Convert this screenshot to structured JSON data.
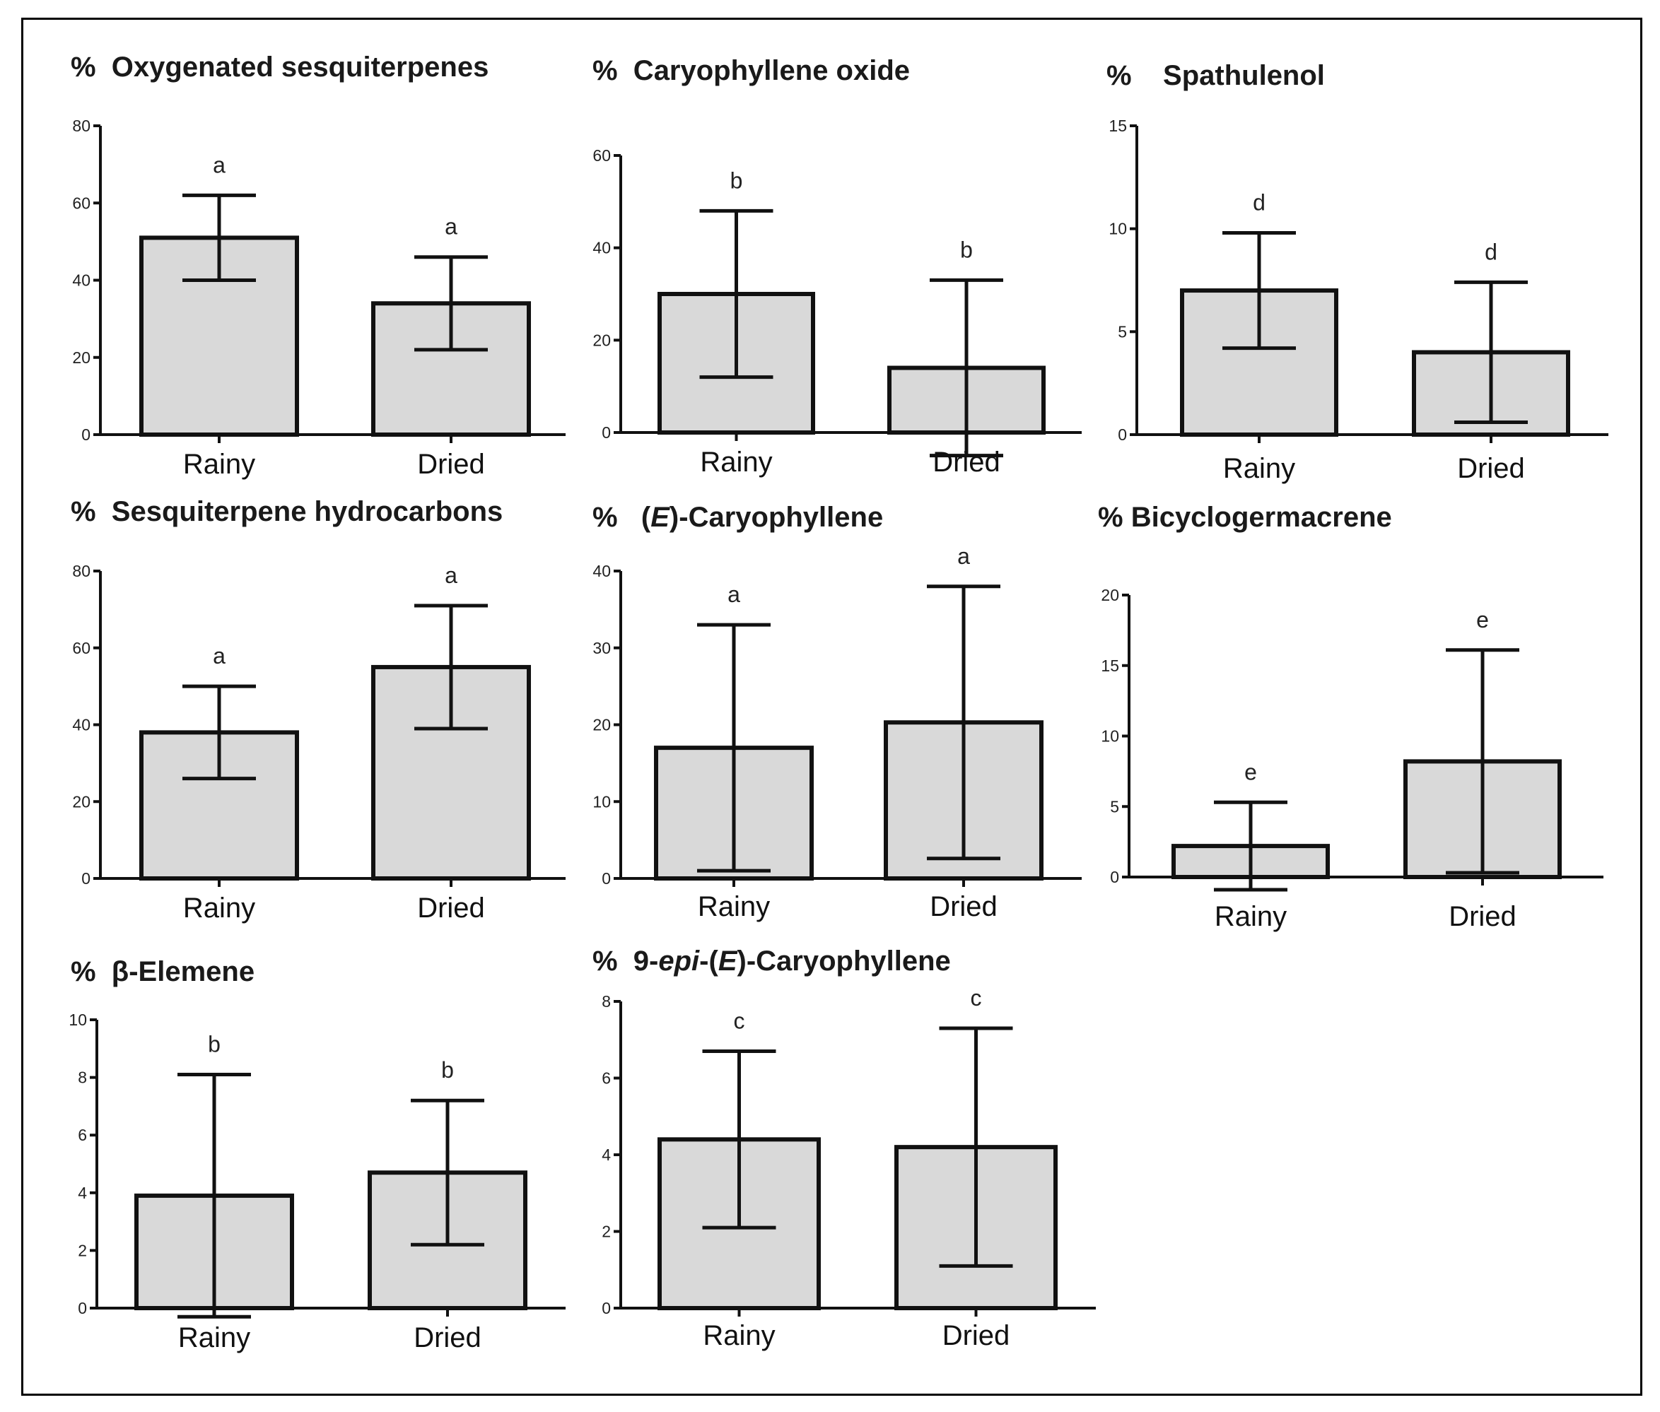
{
  "chart_data": [
    {
      "type": "bar",
      "title_parts": [
        {
          "text": "% "
        },
        {
          "text": " Oxygenated sesquiterpenes"
        }
      ],
      "categories": [
        "Rainy",
        "Dried"
      ],
      "values": [
        51,
        34
      ],
      "errors": [
        11,
        12
      ],
      "significance": [
        "a",
        "a"
      ],
      "ylim": [
        0,
        80
      ],
      "yticks": [
        0,
        20,
        40,
        60,
        80
      ]
    },
    {
      "type": "bar",
      "title_parts": [
        {
          "text": "% "
        },
        {
          "text": " Caryophyllene oxide"
        }
      ],
      "categories": [
        "Rainy",
        "Dried"
      ],
      "values": [
        30,
        14
      ],
      "errors": [
        18,
        19
      ],
      "significance": [
        "b",
        "b"
      ],
      "ylim": [
        0,
        60
      ],
      "yticks": [
        0,
        20,
        40,
        60
      ]
    },
    {
      "type": "bar",
      "title_parts": [
        {
          "text": "% "
        },
        {
          "text": "   Spathulenol"
        }
      ],
      "categories": [
        "Rainy",
        "Dried"
      ],
      "values": [
        7,
        4
      ],
      "errors": [
        2.8,
        3.4
      ],
      "significance": [
        "d",
        "d"
      ],
      "ylim": [
        0,
        15
      ],
      "yticks": [
        0,
        5,
        10,
        15
      ]
    },
    {
      "type": "bar",
      "title_parts": [
        {
          "text": "% "
        },
        {
          "text": " Sesquiterpene hydrocarbons"
        }
      ],
      "categories": [
        "Rainy",
        "Dried"
      ],
      "values": [
        38,
        55
      ],
      "errors": [
        12,
        16
      ],
      "significance": [
        "a",
        "a"
      ],
      "ylim": [
        0,
        80
      ],
      "yticks": [
        0,
        20,
        40,
        60,
        80
      ]
    },
    {
      "type": "bar",
      "title_parts": [
        {
          "text": "% "
        },
        {
          "text": "  ("
        },
        {
          "text": "E",
          "italic": true
        },
        {
          "text": ")-Caryophyllene"
        }
      ],
      "categories": [
        "Rainy",
        "Dried"
      ],
      "values": [
        17,
        20.3
      ],
      "errors": [
        16,
        17.7
      ],
      "significance": [
        "a",
        "a"
      ],
      "ylim": [
        0,
        40
      ],
      "yticks": [
        0,
        10,
        20,
        30,
        40
      ]
    },
    {
      "type": "bar",
      "title_parts": [
        {
          "text": "%"
        },
        {
          "text": " Bicyclogermacrene"
        }
      ],
      "categories": [
        "Rainy",
        "Dried"
      ],
      "values": [
        2.2,
        8.2
      ],
      "errors": [
        3.1,
        7.9
      ],
      "significance": [
        "e",
        "e"
      ],
      "ylim": [
        0,
        20
      ],
      "yticks": [
        0,
        5,
        10,
        15,
        20
      ]
    },
    {
      "type": "bar",
      "title_parts": [
        {
          "text": "% "
        },
        {
          "text": " β-Elemene"
        }
      ],
      "categories": [
        "Rainy",
        "Dried"
      ],
      "values": [
        3.9,
        4.7
      ],
      "errors": [
        4.2,
        2.5
      ],
      "significance": [
        "b",
        "b"
      ],
      "ylim": [
        0,
        10
      ],
      "yticks": [
        0,
        2,
        4,
        6,
        8,
        10
      ]
    },
    {
      "type": "bar",
      "title_parts": [
        {
          "text": "% "
        },
        {
          "text": " 9-"
        },
        {
          "text": "epi",
          "italic": true
        },
        {
          "text": "-("
        },
        {
          "text": "E",
          "italic": true
        },
        {
          "text": ")-Caryophyllene"
        }
      ],
      "categories": [
        "Rainy",
        "Dried"
      ],
      "values": [
        4.4,
        4.2
      ],
      "errors": [
        2.3,
        3.1
      ],
      "significance": [
        "c",
        "c"
      ],
      "ylim": [
        0,
        8
      ],
      "yticks": [
        0,
        2,
        4,
        6,
        8
      ]
    }
  ]
}
